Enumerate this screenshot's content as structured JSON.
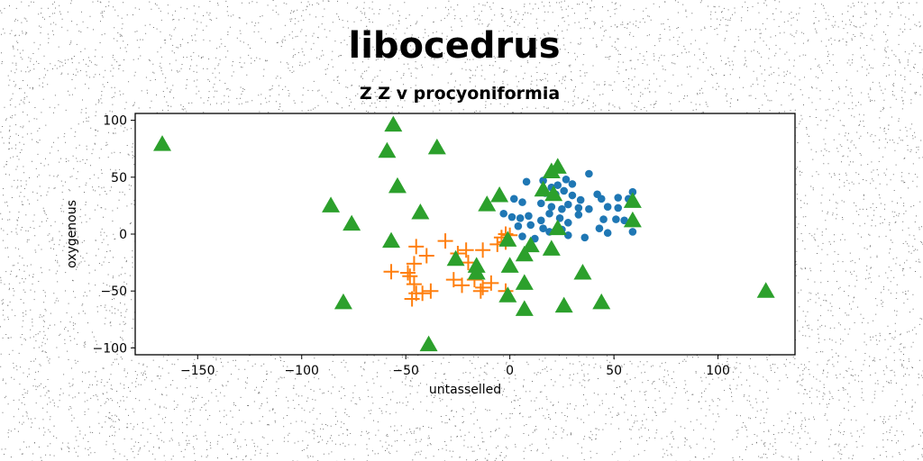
{
  "colors": {
    "series_1": "#1f77b4",
    "series_2": "#ff7f0e",
    "series_3": "#2ca02c",
    "axes": "#000000",
    "background": "#ffffff",
    "noise": "#000000"
  },
  "chart_data": {
    "type": "scatter",
    "title": "libocedrus",
    "subtitle": "Z Z v procyoniformia",
    "xlabel": "untasselled",
    "ylabel": "oxygenous",
    "xlim": [
      -180,
      137
    ],
    "ylim": [
      -106,
      106
    ],
    "xticks": [
      -150,
      -100,
      -50,
      0,
      50,
      100
    ],
    "yticks": [
      -100,
      -50,
      0,
      50,
      100
    ],
    "xtick_labels": [
      "−150",
      "−100",
      "−50",
      "0",
      "50",
      "100"
    ],
    "ytick_labels": [
      "−100",
      "−50",
      "0",
      "50",
      "100"
    ],
    "grid": false,
    "legend": "none",
    "series": [
      {
        "marker": "circle",
        "color": "#1f77b4",
        "points": [
          [
            8,
            46
          ],
          [
            16,
            47
          ],
          [
            20,
            41
          ],
          [
            23,
            43
          ],
          [
            27,
            48
          ],
          [
            30,
            44
          ],
          [
            38,
            53
          ],
          [
            17,
            36
          ],
          [
            22,
            35
          ],
          [
            26,
            38
          ],
          [
            30,
            34
          ],
          [
            34,
            30
          ],
          [
            42,
            35
          ],
          [
            44,
            31
          ],
          [
            52,
            32
          ],
          [
            57,
            31
          ],
          [
            59,
            37
          ],
          [
            2,
            31
          ],
          [
            6,
            28
          ],
          [
            15,
            27
          ],
          [
            20,
            24
          ],
          [
            25,
            22
          ],
          [
            28,
            26
          ],
          [
            33,
            23
          ],
          [
            38,
            22
          ],
          [
            47,
            24
          ],
          [
            52,
            23
          ],
          [
            -3,
            18
          ],
          [
            1,
            15
          ],
          [
            5,
            14
          ],
          [
            9,
            16
          ],
          [
            15,
            12
          ],
          [
            19,
            18
          ],
          [
            24,
            14
          ],
          [
            28,
            10
          ],
          [
            33,
            17
          ],
          [
            45,
            13
          ],
          [
            51,
            13
          ],
          [
            55,
            12
          ],
          [
            59,
            11
          ],
          [
            4,
            7
          ],
          [
            10,
            8
          ],
          [
            16,
            5
          ],
          [
            25,
            4
          ],
          [
            43,
            5
          ],
          [
            47,
            1
          ],
          [
            59,
            2
          ],
          [
            6,
            -2
          ],
          [
            12,
            -4
          ],
          [
            19,
            2
          ],
          [
            28,
            -1
          ],
          [
            36,
            -3
          ]
        ]
      },
      {
        "marker": "plus",
        "color": "#ff7f0e",
        "points": [
          [
            -57,
            -33
          ],
          [
            -49,
            -34
          ],
          [
            -46,
            -26
          ],
          [
            -48,
            -37
          ],
          [
            -46,
            -44
          ],
          [
            -45,
            -52
          ],
          [
            -47,
            -57
          ],
          [
            -42,
            -52
          ],
          [
            -38,
            -50
          ],
          [
            -45,
            -11
          ],
          [
            -40,
            -19
          ],
          [
            -31,
            -6
          ],
          [
            -25,
            -17
          ],
          [
            -21,
            -14
          ],
          [
            -20,
            -25
          ],
          [
            -27,
            -40
          ],
          [
            -23,
            -45
          ],
          [
            -17,
            -40
          ],
          [
            -14,
            -50
          ],
          [
            -9,
            -43
          ],
          [
            -13,
            -14
          ],
          [
            -6,
            -9
          ],
          [
            -2,
            -7
          ],
          [
            -4,
            -3
          ],
          [
            0,
            -1
          ],
          [
            -2,
            0
          ],
          [
            -2,
            -50
          ],
          [
            -13,
            -47
          ]
        ]
      },
      {
        "marker": "triangle",
        "color": "#2ca02c",
        "points": [
          [
            -167,
            79
          ],
          [
            -56,
            96
          ],
          [
            -59,
            73
          ],
          [
            -35,
            76
          ],
          [
            -86,
            25
          ],
          [
            -76,
            9
          ],
          [
            -43,
            19
          ],
          [
            -54,
            42
          ],
          [
            -57,
            -6
          ],
          [
            -80,
            -60
          ],
          [
            -39,
            -97
          ],
          [
            -26,
            -22
          ],
          [
            -11,
            26
          ],
          [
            -16,
            -28
          ],
          [
            -16,
            -34
          ],
          [
            -5,
            34
          ],
          [
            -1,
            -5
          ],
          [
            0,
            -28
          ],
          [
            -1,
            -54
          ],
          [
            7,
            -43
          ],
          [
            7,
            -18
          ],
          [
            10,
            -10
          ],
          [
            7,
            -66
          ],
          [
            20,
            55
          ],
          [
            23,
            59
          ],
          [
            16,
            39
          ],
          [
            21,
            35
          ],
          [
            23,
            5
          ],
          [
            20,
            -13
          ],
          [
            26,
            -63
          ],
          [
            35,
            -34
          ],
          [
            44,
            -60
          ],
          [
            59,
            29
          ],
          [
            59,
            12
          ],
          [
            123,
            -50
          ]
        ]
      }
    ]
  }
}
